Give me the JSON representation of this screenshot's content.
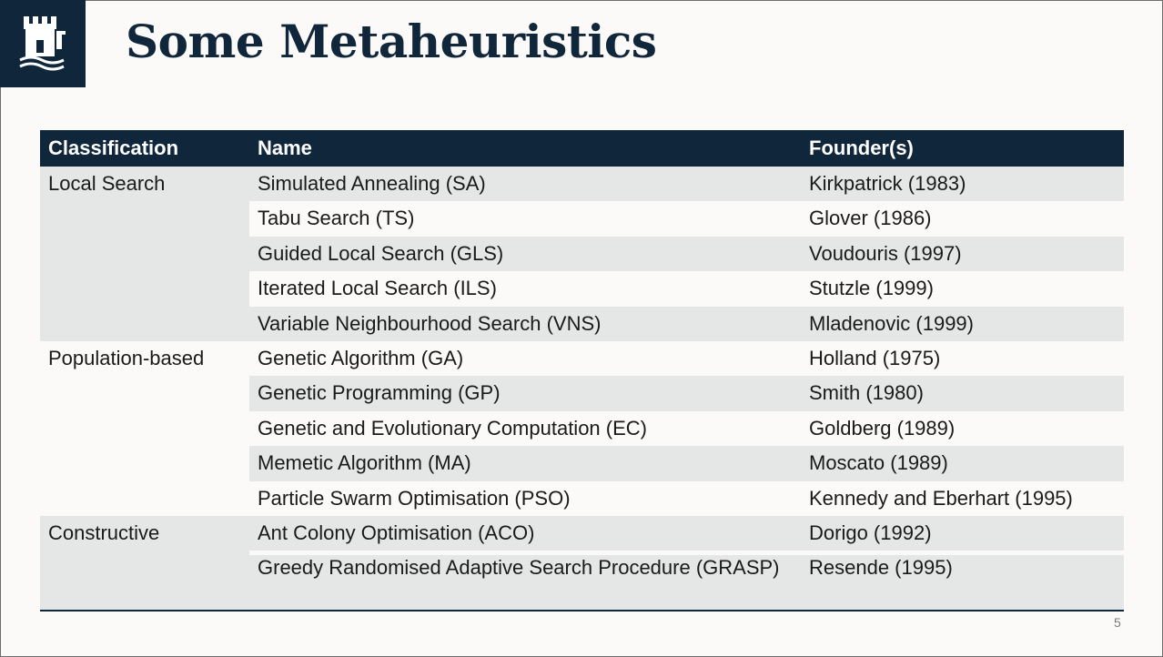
{
  "slide": {
    "title": "Some Metaheuristics",
    "page_number": "5"
  },
  "logo": {
    "icon": "castle-icon"
  },
  "table": {
    "headers": {
      "classification": "Classification",
      "name": "Name",
      "founders": "Founder(s)"
    },
    "groups": [
      {
        "classification": "Local Search"
      },
      {
        "classification": "Population-based"
      },
      {
        "classification": "Constructive"
      }
    ],
    "rows": [
      {
        "name": "Simulated Annealing (SA)",
        "founders": "Kirkpatrick (1983)"
      },
      {
        "name": "Tabu Search (TS)",
        "founders": "Glover (1986)"
      },
      {
        "name": "Guided Local Search (GLS)",
        "founders": "Voudouris (1997)"
      },
      {
        "name": "Iterated Local Search (ILS)",
        "founders": "Stutzle (1999)"
      },
      {
        "name": "Variable Neighbourhood Search (VNS)",
        "founders": "Mladenovic (1999)"
      },
      {
        "name": "Genetic Algorithm (GA)",
        "founders": "Holland (1975)"
      },
      {
        "name": "Genetic Programming (GP)",
        "founders": "Smith (1980)"
      },
      {
        "name": "Genetic and Evolutionary Computation (EC)",
        "founders": "Goldberg (1989)"
      },
      {
        "name": "Memetic Algorithm (MA)",
        "founders": "Moscato (1989)"
      },
      {
        "name": "Particle Swarm Optimisation (PSO)",
        "founders": "Kennedy and Eberhart (1995)"
      },
      {
        "name": "Ant Colony Optimisation (ACO)",
        "founders": "Dorigo (1992)"
      },
      {
        "name": "Greedy Randomised Adaptive Search Procedure (GRASP)",
        "founders": "Resende (1995)"
      }
    ]
  }
}
